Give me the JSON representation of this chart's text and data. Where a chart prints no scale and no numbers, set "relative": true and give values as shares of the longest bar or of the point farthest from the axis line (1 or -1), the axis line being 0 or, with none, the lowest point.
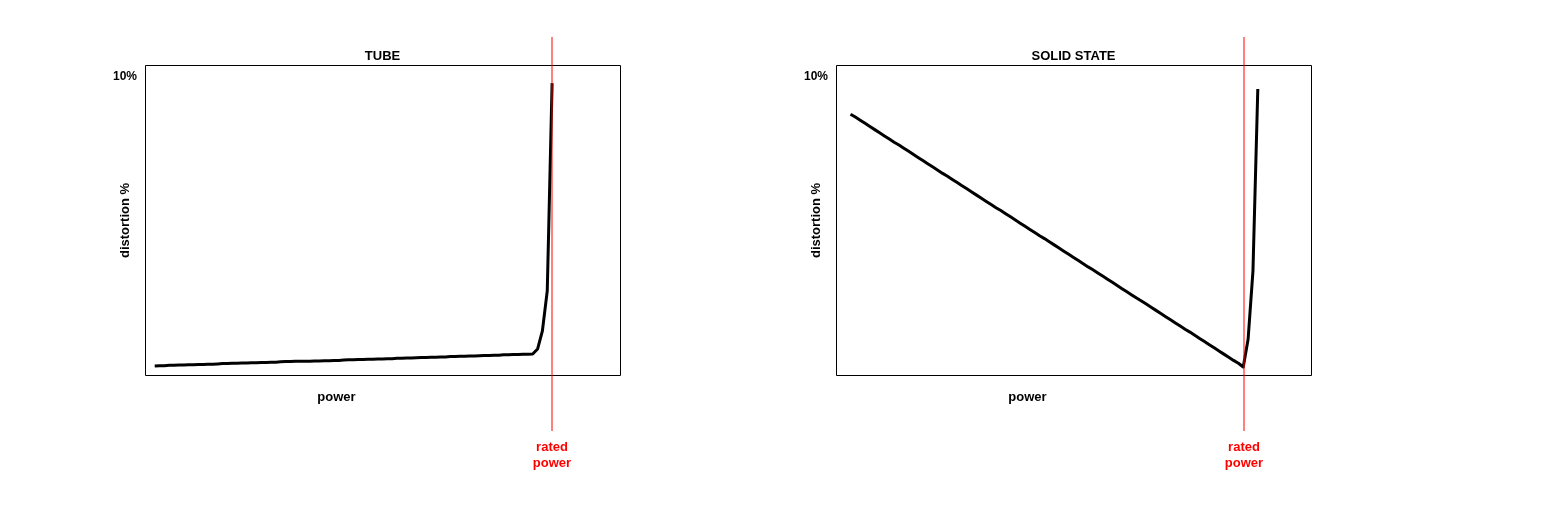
{
  "chart_data": [
    {
      "type": "line",
      "title": "TUBE",
      "xlabel": "power",
      "ylabel": "distortion %",
      "relative": true,
      "categories": [
        null,
        null,
        null,
        null,
        null,
        null,
        null,
        null,
        null,
        null,
        null,
        null,
        null,
        null,
        null,
        null,
        null,
        null,
        null,
        null,
        null,
        null,
        null,
        null,
        null,
        null,
        null,
        null,
        null,
        null,
        null,
        null,
        null,
        null,
        null,
        null,
        null,
        null,
        null,
        null,
        null,
        null,
        null,
        null,
        null,
        null,
        null,
        null,
        null,
        null,
        null,
        null,
        null,
        null,
        null,
        null,
        null,
        null,
        null,
        null,
        null,
        null,
        null,
        null,
        null,
        null,
        null,
        null,
        null,
        null,
        null,
        null,
        null,
        null,
        null,
        null,
        null,
        null,
        null,
        null,
        null,
        null,
        null
      ],
      "series": [
        {
          "color": "#000000",
          "values": [
            0.031,
            0.032,
            0.032,
            0.033,
            0.033,
            0.034,
            0.034,
            0.035,
            0.035,
            0.036,
            0.036,
            0.037,
            0.037,
            0.038,
            0.039,
            0.039,
            0.04,
            0.04,
            0.041,
            0.041,
            0.042,
            0.042,
            0.043,
            0.043,
            0.044,
            0.044,
            0.045,
            0.046,
            0.046,
            0.047,
            0.047,
            0.047,
            0.047,
            0.048,
            0.048,
            0.049,
            0.049,
            0.05,
            0.05,
            0.051,
            0.052,
            0.052,
            0.053,
            0.053,
            0.054,
            0.054,
            0.055,
            0.055,
            0.056,
            0.056,
            0.057,
            0.057,
            0.058,
            0.058,
            0.059,
            0.06,
            0.06,
            0.061,
            0.061,
            0.062,
            0.062,
            0.063,
            0.063,
            0.064,
            0.064,
            0.065,
            0.065,
            0.066,
            0.067,
            0.067,
            0.068,
            0.068,
            0.069,
            0.069,
            0.07,
            0.07,
            0.071,
            0.071,
            0.072,
            0.089,
            0.151,
            0.288,
            1
          ]
        }
      ],
      "annotations": [
        "10%",
        "rated power"
      ]
    },
    {
      "type": "line",
      "title": "SOLID STATE",
      "xlabel": "power",
      "ylabel": "distortion %",
      "relative": true,
      "categories": [
        null,
        null,
        null,
        null,
        null,
        null,
        null,
        null,
        null,
        null,
        null,
        null,
        null,
        null,
        null,
        null,
        null,
        null,
        null,
        null,
        null,
        null,
        null,
        null,
        null,
        null,
        null,
        null,
        null,
        null,
        null,
        null,
        null,
        null,
        null,
        null,
        null,
        null,
        null,
        null,
        null,
        null,
        null,
        null,
        null,
        null,
        null,
        null,
        null,
        null,
        null,
        null,
        null,
        null,
        null,
        null,
        null,
        null,
        null,
        null,
        null,
        null,
        null,
        null,
        null,
        null,
        null,
        null,
        null,
        null,
        null,
        null,
        null,
        null,
        null,
        null,
        null,
        null,
        null,
        null,
        null,
        null,
        null,
        null,
        null
      ],
      "series": [
        {
          "color": "#000000",
          "values": [
            0.912,
            0.902,
            0.891,
            0.88,
            0.869,
            0.858,
            0.847,
            0.836,
            0.825,
            0.814,
            0.804,
            0.793,
            0.782,
            0.771,
            0.76,
            0.749,
            0.738,
            0.727,
            0.716,
            0.705,
            0.695,
            0.684,
            0.673,
            0.662,
            0.651,
            0.64,
            0.629,
            0.618,
            0.607,
            0.596,
            0.585,
            0.575,
            0.564,
            0.553,
            0.542,
            0.531,
            0.52,
            0.509,
            0.498,
            0.487,
            0.477,
            0.466,
            0.455,
            0.444,
            0.433,
            0.422,
            0.411,
            0.4,
            0.389,
            0.378,
            0.368,
            0.357,
            0.346,
            0.335,
            0.324,
            0.313,
            0.302,
            0.291,
            0.28,
            0.269,
            0.259,
            0.248,
            0.237,
            0.226,
            0.215,
            0.204,
            0.193,
            0.182,
            0.171,
            0.16,
            0.15,
            0.139,
            0.128,
            0.117,
            0.106,
            0.095,
            0.084,
            0.073,
            0.062,
            0.051,
            0.041,
            0.028,
            0.125,
            0.363,
            1
          ]
        }
      ],
      "annotations": [
        "10%",
        "rated power"
      ]
    }
  ]
}
